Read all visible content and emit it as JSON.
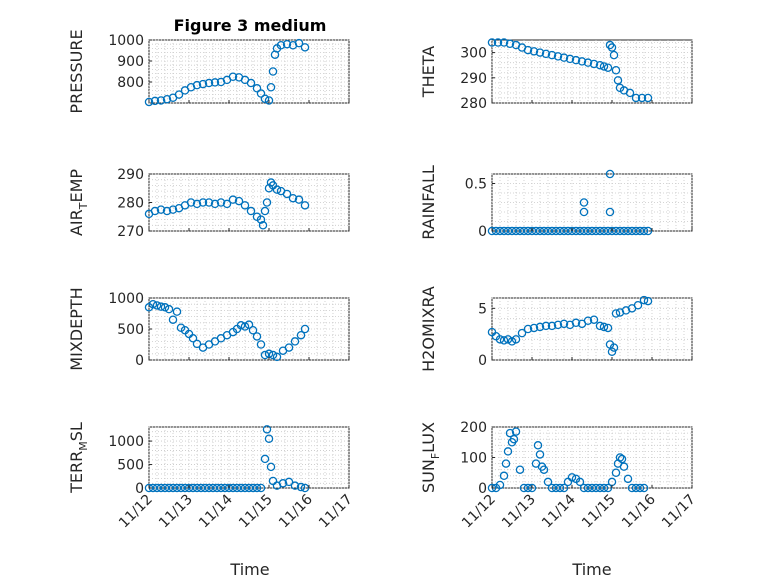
{
  "title": "Figure 3 medium",
  "chart_data": [
    {
      "type": "scatter",
      "ylabel": "PRESSURE",
      "ylim": [
        700,
        1000
      ],
      "yticks": [
        800,
        900,
        1000
      ],
      "ytick_labels": [
        "800",
        "900",
        "1000"
      ],
      "marker_color": "#0072BD",
      "grid": "on",
      "x": [
        0.0,
        0.15,
        0.3,
        0.45,
        0.6,
        0.75,
        0.9,
        1.05,
        1.2,
        1.35,
        1.5,
        1.65,
        1.8,
        1.95,
        2.1,
        2.25,
        2.4,
        2.55,
        2.7,
        2.8,
        2.9,
        3.0,
        3.05,
        3.1,
        3.15,
        3.2,
        3.3,
        3.45,
        3.6,
        3.75,
        3.9
      ],
      "y": [
        705,
        710,
        712,
        718,
        725,
        740,
        760,
        775,
        785,
        790,
        795,
        798,
        800,
        810,
        825,
        822,
        810,
        795,
        770,
        745,
        720,
        712,
        775,
        850,
        930,
        960,
        975,
        980,
        975,
        985,
        965
      ]
    },
    {
      "type": "scatter",
      "ylabel": "THETA",
      "ylim": [
        280,
        305
      ],
      "yticks": [
        280,
        290,
        300
      ],
      "ytick_labels": [
        "280",
        "290",
        "300"
      ],
      "marker_color": "#0072BD",
      "grid": "on",
      "x": [
        0.0,
        0.15,
        0.3,
        0.45,
        0.6,
        0.75,
        0.9,
        1.05,
        1.2,
        1.35,
        1.5,
        1.65,
        1.8,
        1.95,
        2.1,
        2.25,
        2.4,
        2.55,
        2.7,
        2.8,
        2.9,
        2.95,
        3.0,
        3.05,
        3.1,
        3.15,
        3.2,
        3.3,
        3.45,
        3.6,
        3.75,
        3.9
      ],
      "y": [
        304,
        304,
        304,
        303.5,
        303,
        302,
        301,
        300.5,
        300,
        299.5,
        299,
        298.5,
        298,
        297.5,
        297,
        296.5,
        296,
        295.5,
        295,
        294.5,
        294,
        303,
        302,
        299,
        293,
        289,
        286,
        285,
        284,
        282,
        282,
        282
      ]
    },
    {
      "type": "scatter",
      "ylabel": "AIR_TEMP",
      "ylim": [
        270,
        290
      ],
      "yticks": [
        270,
        280,
        290
      ],
      "ytick_labels": [
        "270",
        "280",
        "290"
      ],
      "marker_color": "#0072BD",
      "grid": "on",
      "x": [
        0.0,
        0.15,
        0.3,
        0.45,
        0.6,
        0.75,
        0.9,
        1.05,
        1.2,
        1.35,
        1.5,
        1.65,
        1.8,
        1.95,
        2.1,
        2.25,
        2.4,
        2.55,
        2.7,
        2.8,
        2.85,
        2.9,
        2.95,
        3.0,
        3.05,
        3.1,
        3.2,
        3.3,
        3.45,
        3.6,
        3.75,
        3.9
      ],
      "y": [
        276,
        277,
        277.5,
        277,
        277.5,
        278,
        279,
        280,
        279.5,
        280,
        280,
        279.5,
        280,
        279.5,
        281,
        280.5,
        279,
        277,
        275,
        274,
        272,
        277,
        280,
        285,
        287,
        286,
        284.5,
        284,
        283,
        281.5,
        281,
        279
      ]
    },
    {
      "type": "scatter",
      "ylabel": "RAINFALL",
      "ylim": [
        0,
        0.6
      ],
      "yticks": [
        0,
        0.5
      ],
      "ytick_labels": [
        "0",
        "0.5"
      ],
      "marker_color": "#0072BD",
      "grid": "on",
      "x": [
        0.0,
        0.1,
        0.2,
        0.3,
        0.4,
        0.5,
        0.6,
        0.7,
        0.8,
        0.9,
        1.0,
        1.1,
        1.2,
        1.3,
        1.4,
        1.5,
        1.6,
        1.7,
        1.8,
        1.9,
        2.0,
        2.1,
        2.2,
        2.3,
        2.4,
        2.5,
        2.6,
        2.7,
        2.8,
        2.9,
        3.0,
        3.1,
        3.2,
        3.3,
        3.4,
        3.5,
        3.6,
        3.7,
        3.8,
        3.9,
        2.3,
        2.3,
        2.95,
        2.95
      ],
      "y": [
        0,
        0,
        0,
        0,
        0,
        0,
        0,
        0,
        0,
        0,
        0,
        0,
        0,
        0,
        0,
        0,
        0,
        0,
        0,
        0,
        0,
        0,
        0,
        0,
        0,
        0,
        0,
        0,
        0,
        0,
        0,
        0,
        0,
        0,
        0,
        0,
        0,
        0,
        0,
        0,
        0.3,
        0.2,
        0.6,
        0.2
      ]
    },
    {
      "type": "scatter",
      "ylabel": "MIXDEPTH",
      "ylim": [
        0,
        1000
      ],
      "yticks": [
        0,
        500,
        1000
      ],
      "ytick_labels": [
        "0",
        "500",
        "1000"
      ],
      "marker_color": "#0072BD",
      "grid": "on",
      "x": [
        0.0,
        0.1,
        0.2,
        0.3,
        0.4,
        0.5,
        0.6,
        0.7,
        0.8,
        0.9,
        1.0,
        1.1,
        1.2,
        1.35,
        1.5,
        1.65,
        1.8,
        1.95,
        2.1,
        2.2,
        2.3,
        2.4,
        2.5,
        2.6,
        2.7,
        2.8,
        2.9,
        3.0,
        3.1,
        3.2,
        3.35,
        3.5,
        3.65,
        3.8,
        3.9
      ],
      "y": [
        850,
        900,
        880,
        860,
        850,
        820,
        650,
        780,
        520,
        480,
        420,
        350,
        260,
        200,
        250,
        300,
        350,
        400,
        450,
        500,
        560,
        540,
        570,
        480,
        380,
        250,
        80,
        100,
        80,
        50,
        150,
        200,
        300,
        400,
        500
      ]
    },
    {
      "type": "scatter",
      "ylabel": "H2OMIXRA",
      "ylim": [
        0,
        6
      ],
      "yticks": [
        0,
        5
      ],
      "ytick_labels": [
        "0",
        "5"
      ],
      "marker_color": "#0072BD",
      "grid": "on",
      "x": [
        0.0,
        0.1,
        0.2,
        0.3,
        0.4,
        0.5,
        0.6,
        0.75,
        0.9,
        1.05,
        1.2,
        1.35,
        1.5,
        1.65,
        1.8,
        1.95,
        2.1,
        2.25,
        2.4,
        2.55,
        2.7,
        2.8,
        2.9,
        2.95,
        3.0,
        3.05,
        3.1,
        3.2,
        3.35,
        3.5,
        3.65,
        3.8,
        3.9
      ],
      "y": [
        2.7,
        2.3,
        2.0,
        1.9,
        2.0,
        1.8,
        2.0,
        2.6,
        3.0,
        3.1,
        3.2,
        3.3,
        3.3,
        3.4,
        3.5,
        3.4,
        3.6,
        3.5,
        3.8,
        3.9,
        3.3,
        3.2,
        3.1,
        1.5,
        0.8,
        1.2,
        4.5,
        4.6,
        4.8,
        5.0,
        5.3,
        5.8,
        5.7
      ]
    },
    {
      "type": "scatter",
      "ylabel": "TERR_MSL",
      "ylim": [
        0,
        1300
      ],
      "yticks": [
        0,
        500,
        1000
      ],
      "ytick_labels": [
        "0",
        "500",
        "1000"
      ],
      "marker_color": "#0072BD",
      "grid": "on",
      "x": [
        0.0,
        0.1,
        0.2,
        0.3,
        0.4,
        0.5,
        0.6,
        0.7,
        0.8,
        0.9,
        1.0,
        1.1,
        1.2,
        1.3,
        1.4,
        1.5,
        1.6,
        1.7,
        1.8,
        1.9,
        2.0,
        2.1,
        2.2,
        2.3,
        2.4,
        2.5,
        2.6,
        2.7,
        2.8,
        2.9,
        2.95,
        3.0,
        3.05,
        3.1,
        3.2,
        3.35,
        3.5,
        3.65,
        3.8,
        3.9
      ],
      "y": [
        0,
        0,
        0,
        0,
        0,
        0,
        0,
        0,
        0,
        0,
        0,
        0,
        0,
        0,
        0,
        0,
        0,
        0,
        0,
        0,
        0,
        0,
        0,
        0,
        0,
        0,
        0,
        0,
        0,
        620,
        1250,
        1050,
        450,
        150,
        50,
        100,
        130,
        50,
        20,
        0
      ]
    },
    {
      "type": "scatter",
      "ylabel": "SUN_FLUX",
      "ylim": [
        0,
        200
      ],
      "yticks": [
        0,
        100,
        200
      ],
      "ytick_labels": [
        "0",
        "100",
        "200"
      ],
      "marker_color": "#0072BD",
      "grid": "on",
      "x": [
        0.0,
        0.1,
        0.2,
        0.3,
        0.35,
        0.4,
        0.45,
        0.5,
        0.55,
        0.6,
        0.7,
        0.8,
        0.9,
        1.0,
        1.1,
        1.15,
        1.2,
        1.25,
        1.3,
        1.4,
        1.5,
        1.6,
        1.7,
        1.8,
        1.9,
        2.0,
        2.1,
        2.2,
        2.3,
        2.4,
        2.5,
        2.6,
        2.7,
        2.8,
        2.9,
        3.0,
        3.1,
        3.15,
        3.2,
        3.25,
        3.3,
        3.4,
        3.5,
        3.6,
        3.7,
        3.8
      ],
      "y": [
        0,
        0,
        10,
        40,
        80,
        120,
        180,
        150,
        160,
        185,
        60,
        0,
        0,
        0,
        80,
        140,
        110,
        70,
        60,
        20,
        0,
        0,
        0,
        0,
        20,
        35,
        30,
        20,
        0,
        0,
        0,
        0,
        0,
        0,
        0,
        20,
        50,
        80,
        100,
        95,
        70,
        30,
        0,
        0,
        0,
        0
      ]
    }
  ],
  "x_axis": {
    "xlim": [
      0,
      5
    ],
    "xticks": [
      0,
      1,
      2,
      3,
      4,
      5
    ],
    "xtick_labels": [
      "11/12",
      "11/13",
      "11/14",
      "11/15",
      "11/16",
      "11/17"
    ],
    "xlabel": "Time"
  }
}
